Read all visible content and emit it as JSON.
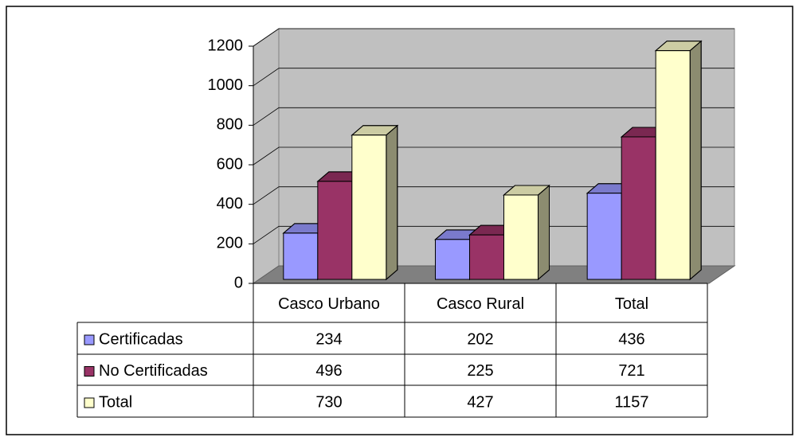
{
  "chart_data": {
    "type": "bar3d",
    "categories": [
      "Casco Urbano",
      "Casco Rural",
      "Total"
    ],
    "series": [
      {
        "name": "Certificadas",
        "color": "#9999ff",
        "values": [
          234,
          202,
          436
        ]
      },
      {
        "name": "No Certificadas",
        "color": "#993366",
        "values": [
          496,
          225,
          721
        ]
      },
      {
        "name": "Total",
        "color": "#ffffcc",
        "values": [
          730,
          427,
          1157
        ]
      }
    ],
    "ylim": [
      0,
      1200
    ],
    "yticks": [
      0,
      200,
      400,
      600,
      800,
      1000,
      1200
    ],
    "grid": true,
    "data_table": true
  }
}
